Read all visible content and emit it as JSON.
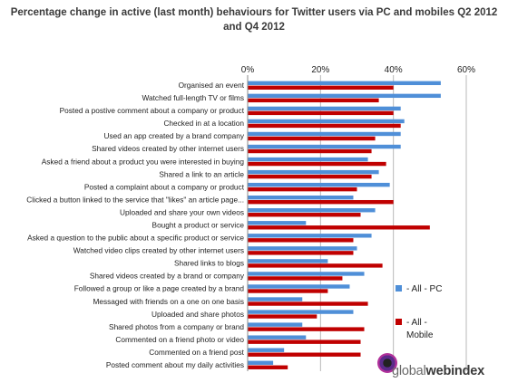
{
  "chart_data": {
    "type": "bar",
    "orientation": "horizontal",
    "title": "Percentage change in active (last month) behaviours for Twitter users via PC and mobiles Q2 2012 and Q4 2012",
    "xlim": [
      0,
      60
    ],
    "ticks": [
      "0%",
      "20%",
      "40%",
      "60%"
    ],
    "tick_values": [
      0,
      20,
      40,
      60
    ],
    "grid": true,
    "legend_position": "right",
    "categories": [
      "Organised an event",
      "Watched full-length TV or films",
      "Posted a postive comment about a company or product",
      "Checked in at a location",
      "Used an app created by a brand company",
      "Shared videos created by other internet users",
      "Asked a friend about a product you were interested in buying",
      "Shared a link to an article",
      "Posted a complaint about a company or product",
      "Clicked a button linked to the service that \"likes\" an article page...",
      "Uploaded and share your own videos",
      "Bought a product or service",
      "Asked a question to the public about a specific product or service",
      "Watched video clips created by other internet users",
      "Shared links to blogs",
      "Shared videos created by a brand or company",
      "Followed a group or like a page created by a brand",
      "Messaged with friends on a one on one basis",
      "Uploaded and share photos",
      "Shared photos from a company or brand",
      "Commented on a friend photo or video",
      "Commented on a friend post",
      "Posted comment about my daily activities"
    ],
    "series": [
      {
        "name": "- All - PC",
        "color": "#4f8fd8",
        "values": [
          53,
          53,
          42,
          43,
          42,
          42,
          33,
          36,
          39,
          29,
          35,
          16,
          34,
          30,
          22,
          32,
          28,
          15,
          29,
          15,
          16,
          10,
          7
        ]
      },
      {
        "name": "- All - Mobile",
        "color": "#c00000",
        "values": [
          40,
          36,
          40,
          42,
          35,
          34,
          38,
          34,
          30,
          40,
          31,
          50,
          29,
          29,
          37,
          26,
          22,
          33,
          19,
          32,
          31,
          31,
          11
        ]
      }
    ]
  },
  "legend": {
    "pc_label": "- All - PC",
    "mobile_label_1": "- All -",
    "mobile_label_2": "Mobile"
  },
  "brand": {
    "prefix": "global",
    "suffix": "webindex"
  }
}
